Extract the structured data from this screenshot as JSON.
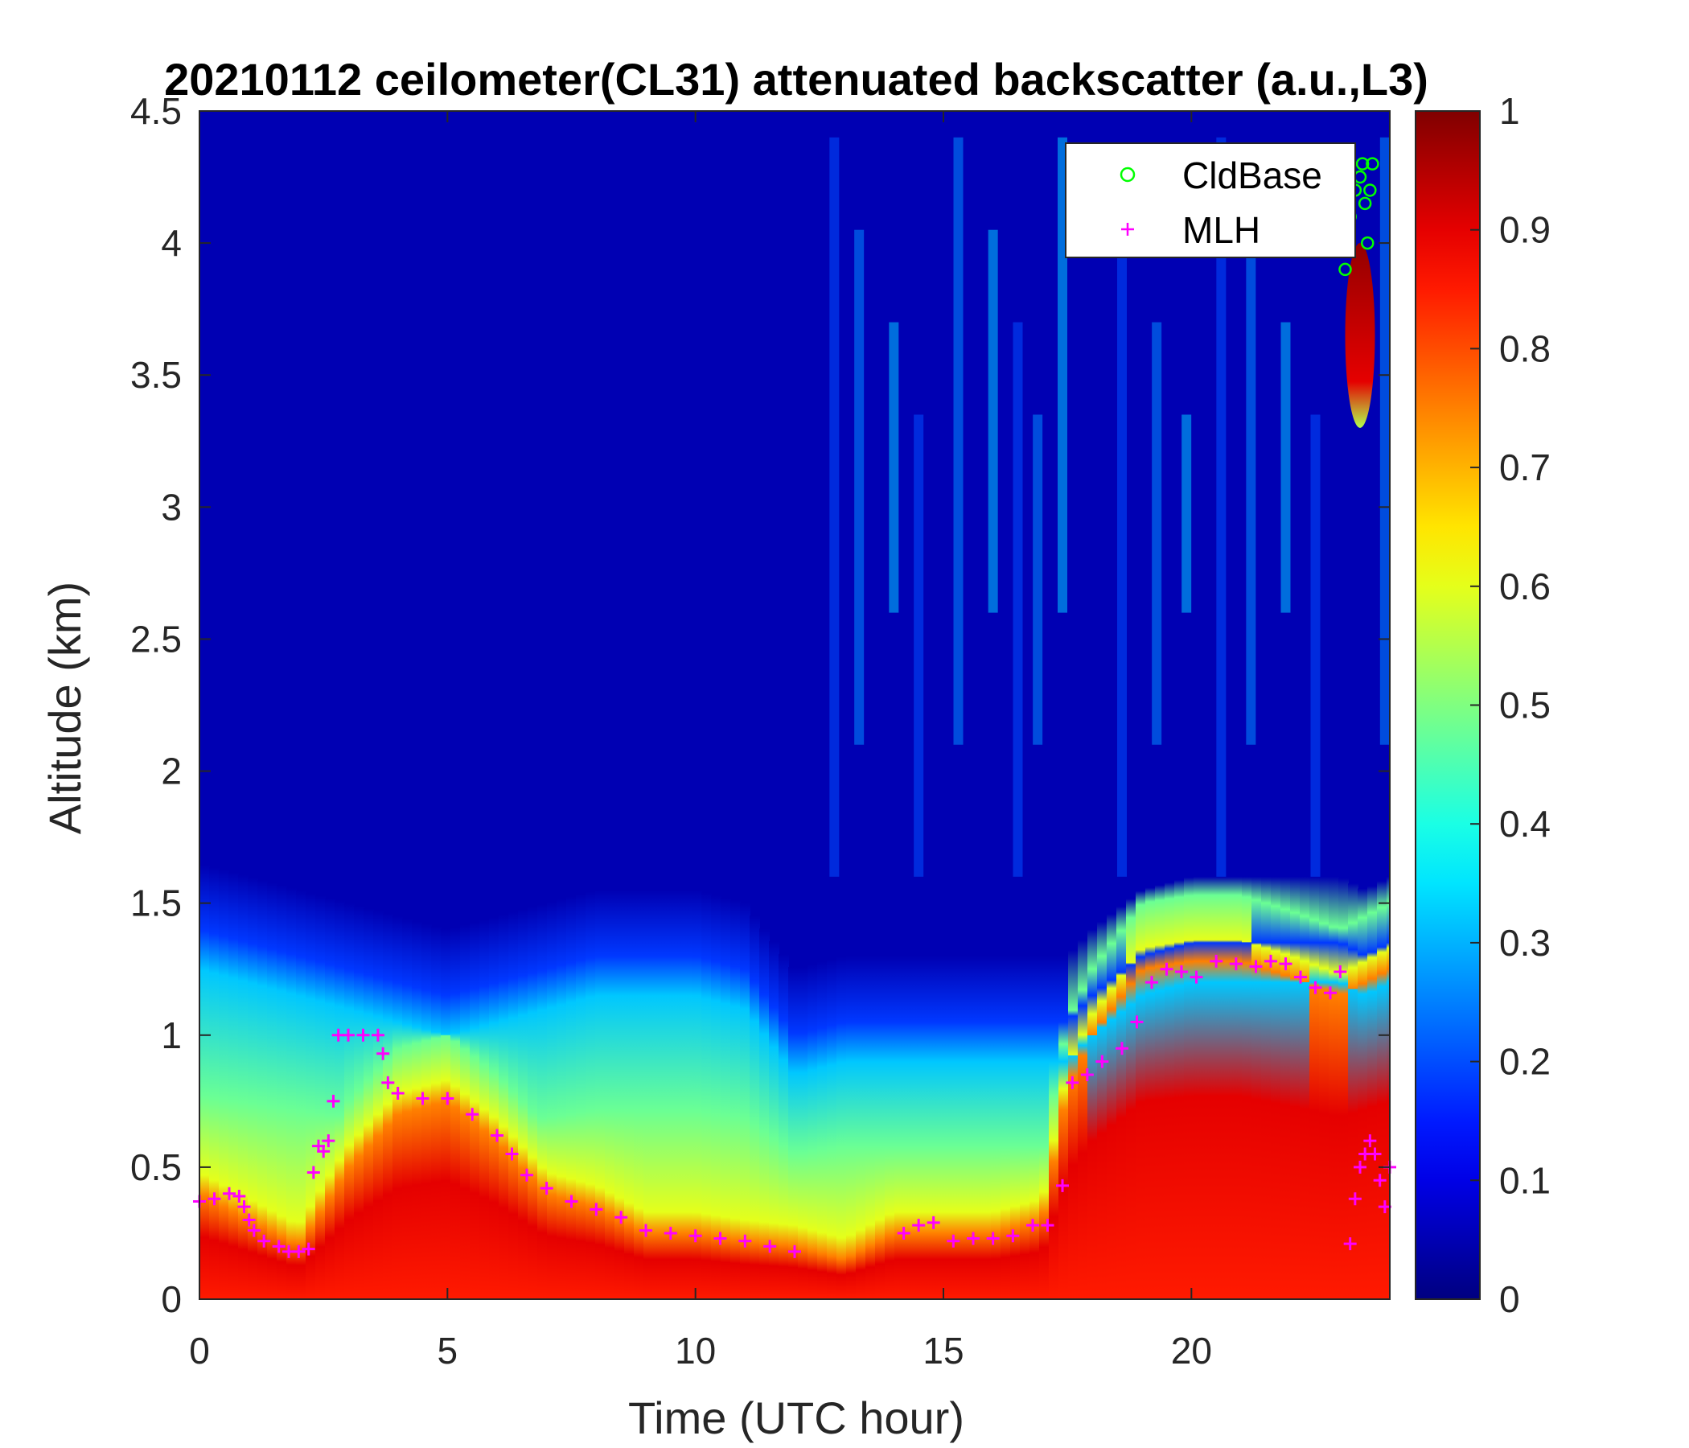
{
  "chart_data": {
    "type": "heatmap",
    "title": "20210112 ceilometer(CL31) attenuated backscatter (a.u.,L3)",
    "xlabel": "Time (UTC hour)",
    "ylabel": "Altitude (km)",
    "xlim": [
      0,
      24
    ],
    "ylim": [
      0,
      4.5
    ],
    "x_ticks": [
      "0",
      "5",
      "10",
      "15",
      "20"
    ],
    "x_tick_values": [
      0,
      5,
      10,
      15,
      20
    ],
    "y_ticks": [
      "0",
      "0.5",
      "1",
      "1.5",
      "2",
      "2.5",
      "3",
      "3.5",
      "4",
      "4.5"
    ],
    "y_tick_values": [
      0,
      0.5,
      1,
      1.5,
      2,
      2.5,
      3,
      3.5,
      4,
      4.5
    ],
    "colorbar": {
      "colormap": "jet",
      "range": [
        0,
        1
      ],
      "ticks": [
        "0",
        "0.1",
        "0.2",
        "0.3",
        "0.4",
        "0.5",
        "0.6",
        "0.7",
        "0.8",
        "0.9",
        "1"
      ],
      "tick_values": [
        0,
        0.1,
        0.2,
        0.3,
        0.4,
        0.5,
        0.6,
        0.7,
        0.8,
        0.9,
        1
      ]
    },
    "legend": {
      "placement": "top-right",
      "entries": [
        "CldBase",
        "MLH"
      ]
    },
    "layer_profile": {
      "time": [
        0,
        1,
        2,
        3,
        4,
        5,
        6,
        7,
        8,
        9,
        10,
        11,
        12,
        13,
        14,
        15,
        16,
        17,
        17.5,
        18,
        19,
        20,
        21,
        22,
        23,
        23.5,
        24
      ],
      "aerosol_top_km": [
        1.4,
        1.35,
        1.3,
        1.25,
        1.2,
        1.15,
        1.2,
        1.25,
        1.3,
        1.3,
        1.3,
        1.25,
        1.0,
        1.05,
        1.05,
        1.05,
        1.05,
        1.05,
        1.05,
        1.15,
        1.3,
        1.35,
        1.35,
        1.35,
        1.35,
        1.3,
        1.35
      ],
      "high_layer_top_km": [
        0.4,
        0.3,
        0.2,
        0.5,
        0.7,
        0.75,
        0.6,
        0.4,
        0.35,
        0.25,
        0.25,
        0.22,
        0.2,
        0.15,
        0.25,
        0.25,
        0.25,
        0.3,
        0.8,
        1.0,
        1.25,
        1.28,
        1.28,
        1.22,
        1.15,
        1.2,
        1.25
      ]
    },
    "cloud_layers": [
      {
        "time_start": 23.1,
        "time_end": 23.7,
        "base_km": 3.3,
        "top_km": 4.0
      }
    ],
    "series": [
      {
        "name": "MLH",
        "marker": "plus",
        "color": "#FF00FF",
        "x": [
          0,
          0.3,
          0.6,
          0.8,
          0.9,
          1.0,
          1.1,
          1.3,
          1.6,
          1.8,
          2.0,
          2.2,
          2.3,
          2.4,
          2.5,
          2.6,
          2.7,
          2.8,
          3.0,
          3.3,
          3.6,
          3.7,
          3.8,
          4.0,
          4.5,
          5.0,
          5.5,
          6.0,
          6.3,
          6.6,
          7.0,
          7.5,
          8.0,
          8.5,
          9.0,
          9.5,
          10.0,
          10.5,
          11.0,
          11.5,
          12.0,
          14.2,
          14.5,
          14.8,
          15.2,
          15.6,
          16.0,
          16.4,
          16.8,
          17.1,
          17.4,
          17.6,
          17.9,
          18.2,
          18.6,
          18.9,
          19.2,
          19.5,
          19.8,
          20.1,
          20.5,
          20.9,
          21.3,
          21.6,
          21.9,
          22.2,
          22.5,
          22.8,
          23.0,
          23.2,
          23.3,
          23.4,
          23.5,
          23.6,
          23.7,
          23.8,
          23.9,
          24.0
        ],
        "y": [
          0.37,
          0.38,
          0.4,
          0.39,
          0.35,
          0.3,
          0.26,
          0.22,
          0.2,
          0.18,
          0.18,
          0.19,
          0.48,
          0.58,
          0.56,
          0.6,
          0.75,
          1.0,
          1.0,
          1.0,
          1.0,
          0.93,
          0.82,
          0.78,
          0.76,
          0.76,
          0.7,
          0.62,
          0.55,
          0.47,
          0.42,
          0.37,
          0.34,
          0.31,
          0.26,
          0.25,
          0.24,
          0.23,
          0.22,
          0.2,
          0.18,
          0.25,
          0.28,
          0.29,
          0.22,
          0.23,
          0.23,
          0.24,
          0.28,
          0.28,
          0.43,
          0.82,
          0.85,
          0.9,
          0.95,
          1.05,
          1.2,
          1.25,
          1.24,
          1.22,
          1.28,
          1.27,
          1.26,
          1.28,
          1.27,
          1.22,
          1.18,
          1.16,
          1.24,
          0.21,
          0.38,
          0.5,
          0.55,
          0.6,
          0.55,
          0.45,
          0.35,
          0.5
        ]
      },
      {
        "name": "CldBase",
        "marker": "circle",
        "color": "#00FF00",
        "x": [
          23.1,
          23.2,
          23.3,
          23.4,
          23.45,
          23.5,
          23.55,
          23.6,
          23.65
        ],
        "y": [
          3.9,
          4.1,
          4.2,
          4.25,
          4.3,
          4.15,
          4.0,
          4.2,
          4.3
        ]
      }
    ]
  }
}
